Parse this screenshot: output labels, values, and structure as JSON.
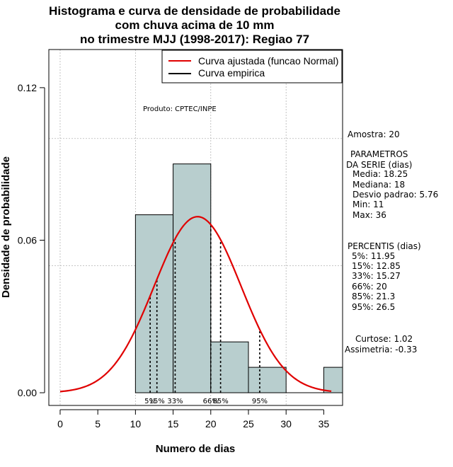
{
  "chart_data": {
    "type": "histogram",
    "title_lines": [
      "Histograma e curva de densidade de probabilidade",
      "com chuva acima de 10 mm",
      "no trimestre MJJ (1998-2017): Regiao 77"
    ],
    "xlabel": "Numero de dias",
    "ylabel": "Densidade de probabilidade",
    "xlim": [
      -1.5,
      37.5
    ],
    "ylim": [
      -0.005,
      0.135
    ],
    "x_ticks": [
      0,
      5,
      10,
      15,
      20,
      25,
      30,
      35
    ],
    "y_ticks": [
      0.0,
      0.06,
      0.12
    ],
    "y_tick_labels": [
      "0.00",
      "0.06",
      "0.12"
    ],
    "x_grid": [
      0,
      10,
      20,
      30
    ],
    "y_grid": [
      0.05,
      0.1
    ],
    "bins": [
      {
        "start": 10,
        "end": 15,
        "density": 0.07
      },
      {
        "start": 15,
        "end": 20,
        "density": 0.09
      },
      {
        "start": 20,
        "end": 25,
        "density": 0.02
      },
      {
        "start": 25,
        "end": 30,
        "density": 0.01
      },
      {
        "start": 30,
        "end": 35,
        "density": 0.0
      },
      {
        "start": 35,
        "end": 40,
        "density": 0.01
      }
    ],
    "normal_fit": {
      "mean": 18.25,
      "sd": 5.76,
      "x_from": 0,
      "x_to": 36
    },
    "percentile_lines": [
      {
        "label": "5%",
        "x": 11.95
      },
      {
        "label": "15%",
        "x": 12.85
      },
      {
        "label": "33%",
        "x": 15.27
      },
      {
        "label": "66%",
        "x": 20
      },
      {
        "label": "85%",
        "x": 21.3
      },
      {
        "label": "95%",
        "x": 26.5
      }
    ],
    "legend": [
      {
        "label": "Curva ajustada (funcao Normal)",
        "color": "#e00000"
      },
      {
        "label": "Curva empirica",
        "color": "#000000"
      }
    ],
    "credit": "Produto: CPTEC/INPE",
    "colors": {
      "bar_fill": "#b8cece",
      "fit_line": "#e00000",
      "grid": "#b4b4b4"
    }
  },
  "stats": {
    "amostra": "Amostra: 20",
    "parametros_header": [
      "PARAMETROS",
      "DA SERIE (dias)"
    ],
    "parametros": [
      "Media: 18.25",
      "Mediana: 18",
      "Desvio padrao: 5.76",
      "Min: 11",
      "Max: 36"
    ],
    "percentis_header": "PERCENTIS (dias)",
    "percentis": [
      "5%: 11.95",
      "15%: 12.85",
      "33%: 15.27",
      "66%: 20",
      "85%: 21.3",
      "95%: 26.5"
    ],
    "curtose": "Curtose: 1.02",
    "assimetria": "Assimetria: -0.33"
  }
}
